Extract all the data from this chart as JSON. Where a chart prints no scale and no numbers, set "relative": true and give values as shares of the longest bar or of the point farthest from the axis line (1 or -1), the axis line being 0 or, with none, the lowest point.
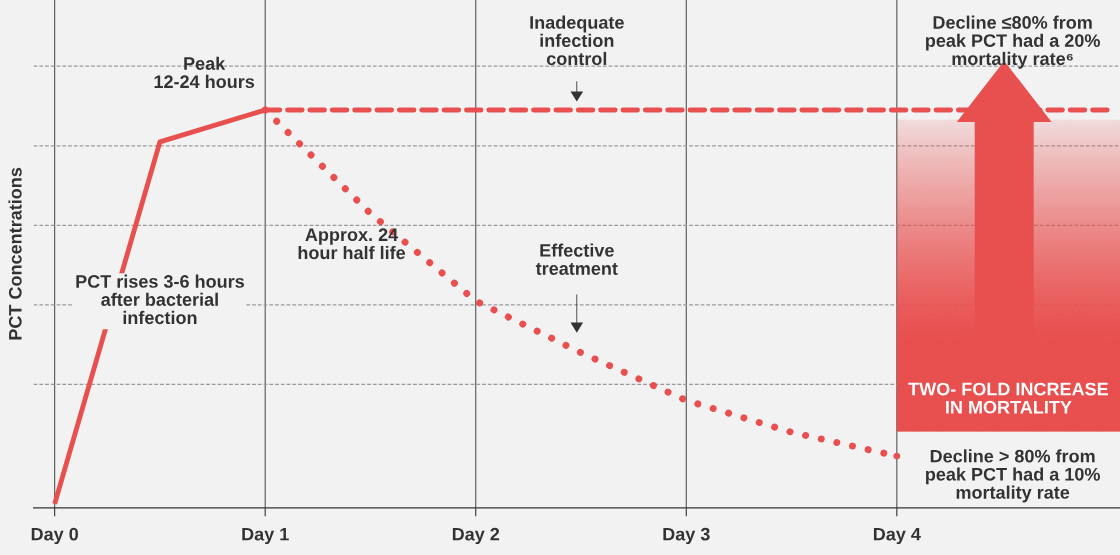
{
  "chart_data": {
    "type": "line",
    "relative": true,
    "ylabel": "PCT Concentrations",
    "categories": [
      "Day 0",
      null,
      "Day 1",
      null,
      "Day 2",
      null,
      "Day 3",
      null,
      "Day 4",
      null,
      null
    ],
    "grid": "x",
    "series": [
      {
        "color": "#e8504f",
        "line_style": "solid",
        "values": [
          0.01,
          0.92,
          1.0,
          null,
          null,
          null,
          null,
          null,
          null,
          null,
          null
        ]
      },
      {
        "color": "#e8504f",
        "line_style": "dashed",
        "values": [
          null,
          null,
          1.0,
          1.0,
          1.0,
          1.0,
          1.0,
          1.0,
          1.0,
          1.0,
          1.0
        ]
      },
      {
        "color": "#e8504f",
        "line_style": "dotted",
        "values": [
          null,
          null,
          1.0,
          0.74,
          0.52,
          0.39,
          0.27,
          0.19,
          0.13,
          null,
          null
        ]
      }
    ],
    "ref_lines": [
      {
        "axis": "y",
        "value": 1.11,
        "color": "#999999",
        "line_style": "dashed"
      },
      {
        "axis": "y",
        "value": 0.91,
        "color": "#999999",
        "line_style": "dashed"
      },
      {
        "axis": "y",
        "value": 0.71,
        "color": "#999999",
        "line_style": "dashed"
      },
      {
        "axis": "y",
        "value": 0.51,
        "color": "#999999",
        "line_style": "dashed"
      },
      {
        "axis": "y",
        "value": 0.31,
        "color": "#999999",
        "line_style": "dashed"
      }
    ],
    "annotations": [
      "Peak\n12-24 hours",
      "PCT rises 3-6 hours\nafter bacterial\ninfection",
      "Approx. 24\nhour half life",
      "Inadequate\ninfection\ncontrol",
      "Effective\ntreatment",
      "Decline ≤80% from\npeak PCT had a 20%\nmortality rate⁶",
      "Decline > 80% from\npeak PCT had a 10%\nmortality rate",
      "TWO- FOLD INCREASE\nIN MORTALITY"
    ]
  }
}
